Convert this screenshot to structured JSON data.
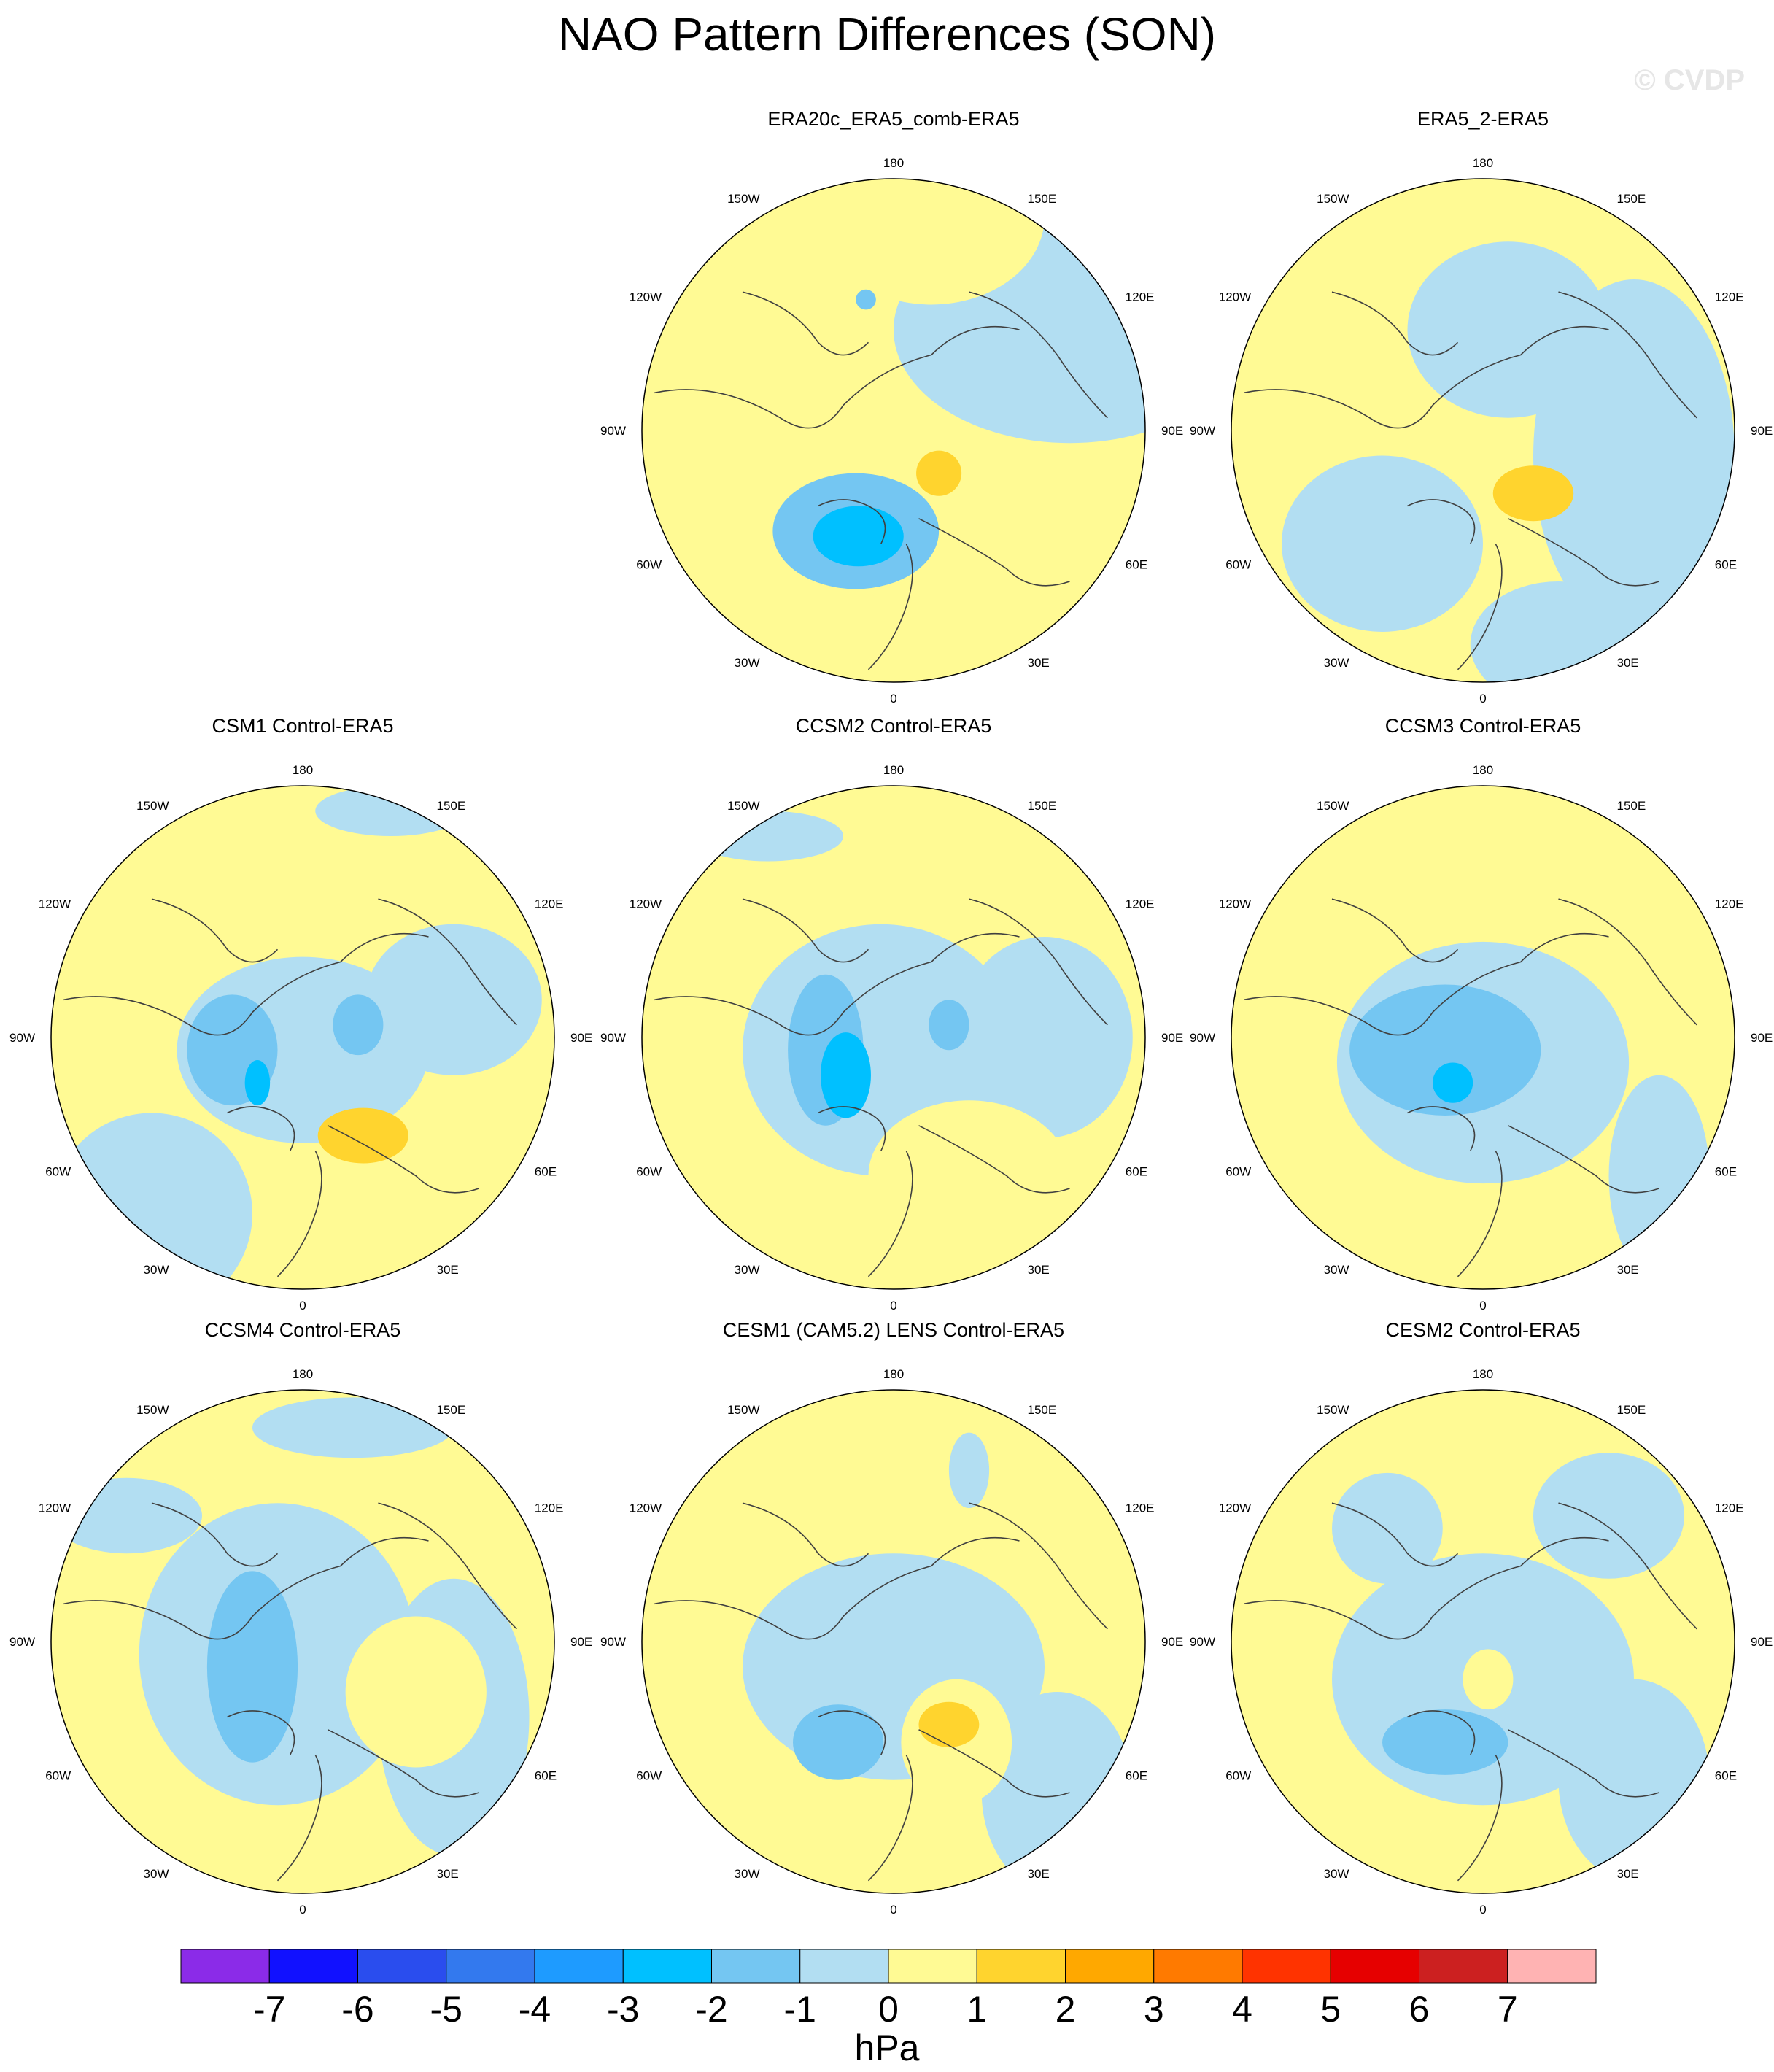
{
  "title": "NAO Pattern Differences (SON)",
  "watermark": "© CVDP",
  "lon_labels": [
    "180",
    "150E",
    "120E",
    "90E",
    "60E",
    "30E",
    "0",
    "30W",
    "60W",
    "90W",
    "120W",
    "150W"
  ],
  "colors": {
    "neg2": "#74c6f2",
    "neg1": "#b2def2",
    "zero": "#fffa94",
    "pos1": "#ffd42e",
    "neg3": "#00c0ff",
    "neg4": "#1e9bff",
    "coast": "#404040"
  },
  "panels": [
    {
      "title": "ERA20c_ERA5_comb-ERA5"
    },
    {
      "title": "ERA5_2-ERA5"
    },
    {
      "title": "CSM1 Control-ERA5"
    },
    {
      "title": "CCSM2 Control-ERA5"
    },
    {
      "title": "CCSM3 Control-ERA5"
    },
    {
      "title": "CCSM4 Control-ERA5"
    },
    {
      "title": "CESM1 (CAM5.2) LENS Control-ERA5"
    },
    {
      "title": "CESM2 Control-ERA5"
    }
  ],
  "colorbar": {
    "colors": [
      "#8b2be8",
      "#1111ff",
      "#2a4dee",
      "#3379ee",
      "#1e9bff",
      "#00c0ff",
      "#74c6f2",
      "#b2def2",
      "#fffa94",
      "#ffd42e",
      "#ffa800",
      "#ff7a00",
      "#ff3300",
      "#e60000",
      "#cc2020",
      "#ffb3b3"
    ],
    "labels": [
      "-7",
      "-6",
      "-5",
      "-4",
      "-3",
      "-2",
      "-1",
      "0",
      "1",
      "2",
      "3",
      "4",
      "5",
      "6",
      "7"
    ],
    "units": "hPa"
  }
}
